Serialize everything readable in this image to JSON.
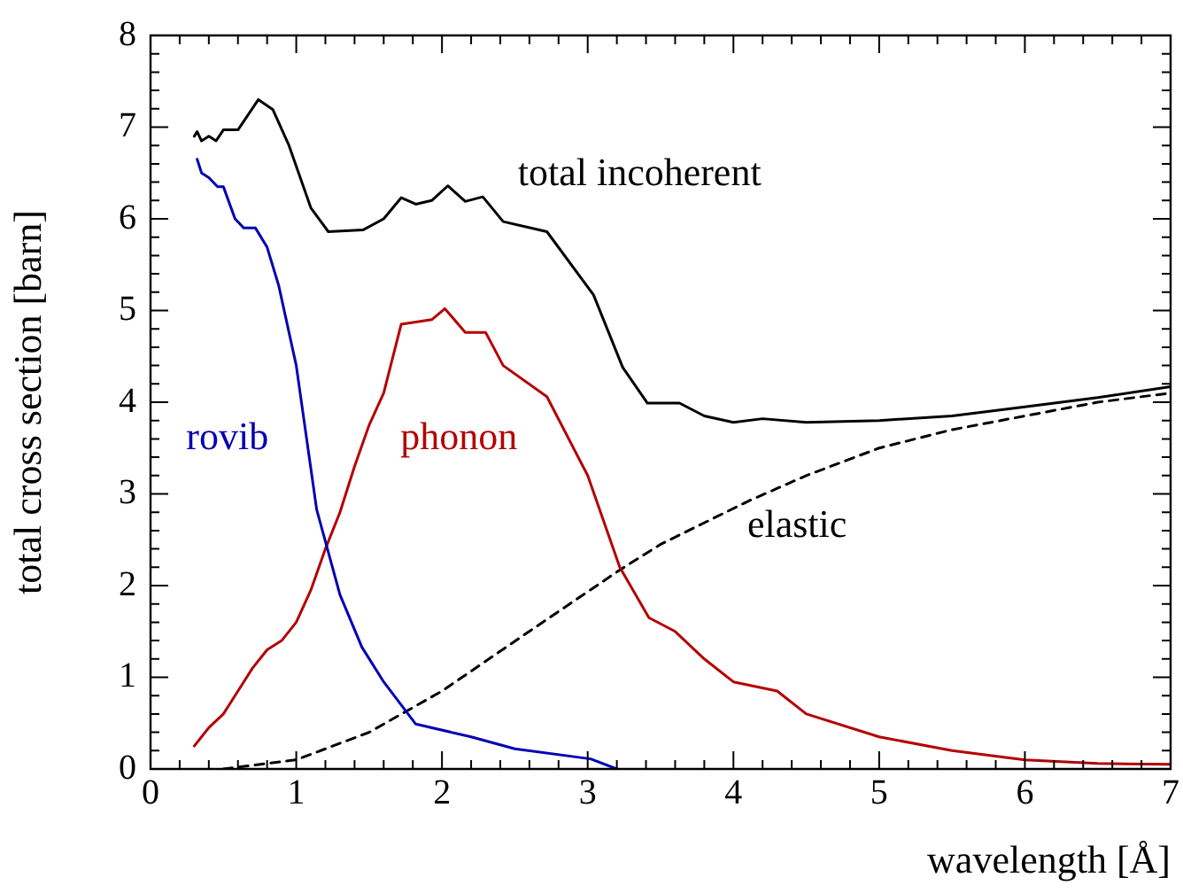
{
  "chart_data": {
    "type": "line",
    "xlabel": "wavelength [Å]",
    "ylabel": "total cross section [barn]",
    "xlim": [
      0,
      7
    ],
    "ylim": [
      0,
      8
    ],
    "xticks": [
      0,
      1,
      2,
      3,
      4,
      5,
      6,
      7
    ],
    "yticks": [
      0,
      1,
      2,
      3,
      4,
      5,
      6,
      7,
      8
    ],
    "grid": false,
    "legend": false,
    "marker": "none",
    "series": [
      {
        "name": "total incoherent",
        "color": "#000000",
        "line_style": "solid",
        "x": [
          0.3,
          0.32,
          0.35,
          0.4,
          0.45,
          0.5,
          0.6,
          0.74,
          0.84,
          0.95,
          1.1,
          1.22,
          1.46,
          1.6,
          1.72,
          1.82,
          1.93,
          2.04,
          2.16,
          2.28,
          2.42,
          2.72,
          3.04,
          3.24,
          3.41,
          3.63,
          3.8,
          4.0,
          4.2,
          4.5,
          5.0,
          5.5,
          6.0,
          6.5,
          7.0
        ],
        "values": [
          6.9,
          6.95,
          6.85,
          6.9,
          6.85,
          6.97,
          6.97,
          7.3,
          7.19,
          6.8,
          6.12,
          5.86,
          5.88,
          6.0,
          6.23,
          6.16,
          6.2,
          6.36,
          6.19,
          6.24,
          5.97,
          5.86,
          5.17,
          4.38,
          3.99,
          3.99,
          3.85,
          3.78,
          3.82,
          3.78,
          3.8,
          3.85,
          3.95,
          4.05,
          4.17
        ]
      },
      {
        "name": "rovib",
        "color": "#0000b4",
        "line_style": "solid",
        "x": [
          0.32,
          0.35,
          0.4,
          0.46,
          0.5,
          0.58,
          0.64,
          0.72,
          0.8,
          0.88,
          1.0,
          1.14,
          1.3,
          1.45,
          1.6,
          1.82,
          2.2,
          2.5,
          3.02,
          3.2
        ],
        "values": [
          6.65,
          6.5,
          6.45,
          6.35,
          6.35,
          6.0,
          5.9,
          5.9,
          5.69,
          5.27,
          4.4,
          2.83,
          1.9,
          1.33,
          0.95,
          0.49,
          0.35,
          0.22,
          0.11,
          0
        ]
      },
      {
        "name": "phonon",
        "color": "#b40000",
        "line_style": "solid",
        "x": [
          0.3,
          0.35,
          0.4,
          0.5,
          0.6,
          0.7,
          0.8,
          0.9,
          1.0,
          1.1,
          1.2,
          1.3,
          1.4,
          1.5,
          1.6,
          1.72,
          1.93,
          2.02,
          2.16,
          2.3,
          2.42,
          2.72,
          3.0,
          3.22,
          3.42,
          3.6,
          3.8,
          4.0,
          4.3,
          4.5,
          5.0,
          5.5,
          6.0,
          6.5,
          7.0
        ],
        "values": [
          0.25,
          0.35,
          0.45,
          0.6,
          0.85,
          1.1,
          1.3,
          1.4,
          1.6,
          1.95,
          2.4,
          2.8,
          3.3,
          3.75,
          4.1,
          4.85,
          4.9,
          5.02,
          4.76,
          4.76,
          4.4,
          4.06,
          3.2,
          2.2,
          1.65,
          1.5,
          1.2,
          0.95,
          0.85,
          0.6,
          0.35,
          0.2,
          0.1,
          0.06,
          0.05
        ]
      },
      {
        "name": "elastic",
        "color": "#000000",
        "line_style": "dashed",
        "x": [
          0.5,
          1.0,
          1.5,
          2.0,
          2.58,
          3.22,
          3.5,
          4.1,
          4.5,
          5.0,
          5.5,
          6.0,
          6.5,
          7.0
        ],
        "values": [
          0,
          0.1,
          0.4,
          0.85,
          1.48,
          2.17,
          2.45,
          2.92,
          3.2,
          3.5,
          3.7,
          3.85,
          4.0,
          4.1
        ]
      }
    ]
  }
}
